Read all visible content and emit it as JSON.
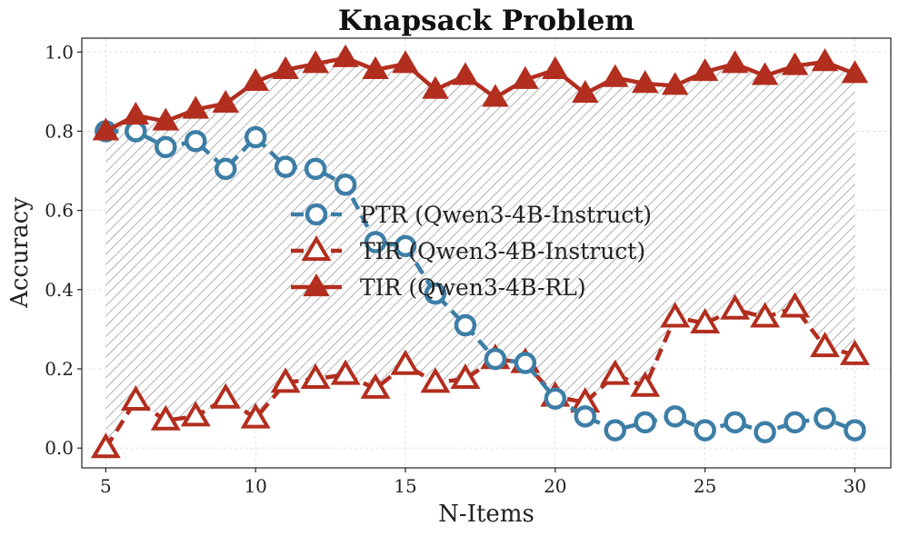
{
  "chart_data": {
    "type": "line",
    "title": "Knapsack Problem",
    "xlabel": "N-Items",
    "ylabel": "Accuracy",
    "xlim": [
      4.2,
      31.2
    ],
    "ylim": [
      -0.05,
      1.035
    ],
    "xticks": [
      5,
      10,
      15,
      20,
      25,
      30
    ],
    "yticks": [
      0.0,
      0.2,
      0.4,
      0.6,
      0.8,
      1.0
    ],
    "grid": true,
    "legend_position": "center",
    "shaded_region": {
      "between": [
        "TIR (Qwen3-4B-Instruct)",
        "TIR (Qwen3-4B-RL)"
      ],
      "pattern": "hatch"
    },
    "x": [
      5,
      6,
      7,
      8,
      9,
      10,
      11,
      12,
      13,
      14,
      15,
      16,
      17,
      18,
      19,
      20,
      21,
      22,
      23,
      24,
      25,
      26,
      27,
      28,
      29,
      30
    ],
    "series": [
      {
        "name": "PTR (Qwen3-4B-Instruct)",
        "color": "#3d7ea6",
        "marker": "circle-open",
        "linestyle": "dashed",
        "values": [
          0.8,
          0.8,
          0.76,
          0.775,
          0.705,
          0.785,
          0.71,
          0.705,
          0.665,
          0.52,
          0.51,
          0.39,
          0.31,
          0.225,
          0.215,
          0.125,
          0.08,
          0.045,
          0.065,
          0.08,
          0.045,
          0.065,
          0.04,
          0.065,
          0.075,
          0.045
        ]
      },
      {
        "name": "TIR (Qwen3-4B-Instruct)",
        "color": "#b22e1e",
        "marker": "triangle-open",
        "linestyle": "dashed",
        "values": [
          0.0,
          0.12,
          0.07,
          0.08,
          0.125,
          0.075,
          0.165,
          0.175,
          0.185,
          0.15,
          0.21,
          0.165,
          0.175,
          0.225,
          0.215,
          0.13,
          0.115,
          0.185,
          0.155,
          0.33,
          0.315,
          0.35,
          0.33,
          0.355,
          0.255,
          0.235
        ]
      },
      {
        "name": "TIR (Qwen3-4B-RL)",
        "color": "#b22e1e",
        "marker": "triangle-filled",
        "linestyle": "solid",
        "values": [
          0.8,
          0.84,
          0.825,
          0.855,
          0.87,
          0.925,
          0.955,
          0.97,
          0.985,
          0.955,
          0.97,
          0.905,
          0.94,
          0.885,
          0.93,
          0.955,
          0.895,
          0.935,
          0.92,
          0.915,
          0.95,
          0.97,
          0.94,
          0.965,
          0.975,
          0.945
        ]
      }
    ]
  }
}
